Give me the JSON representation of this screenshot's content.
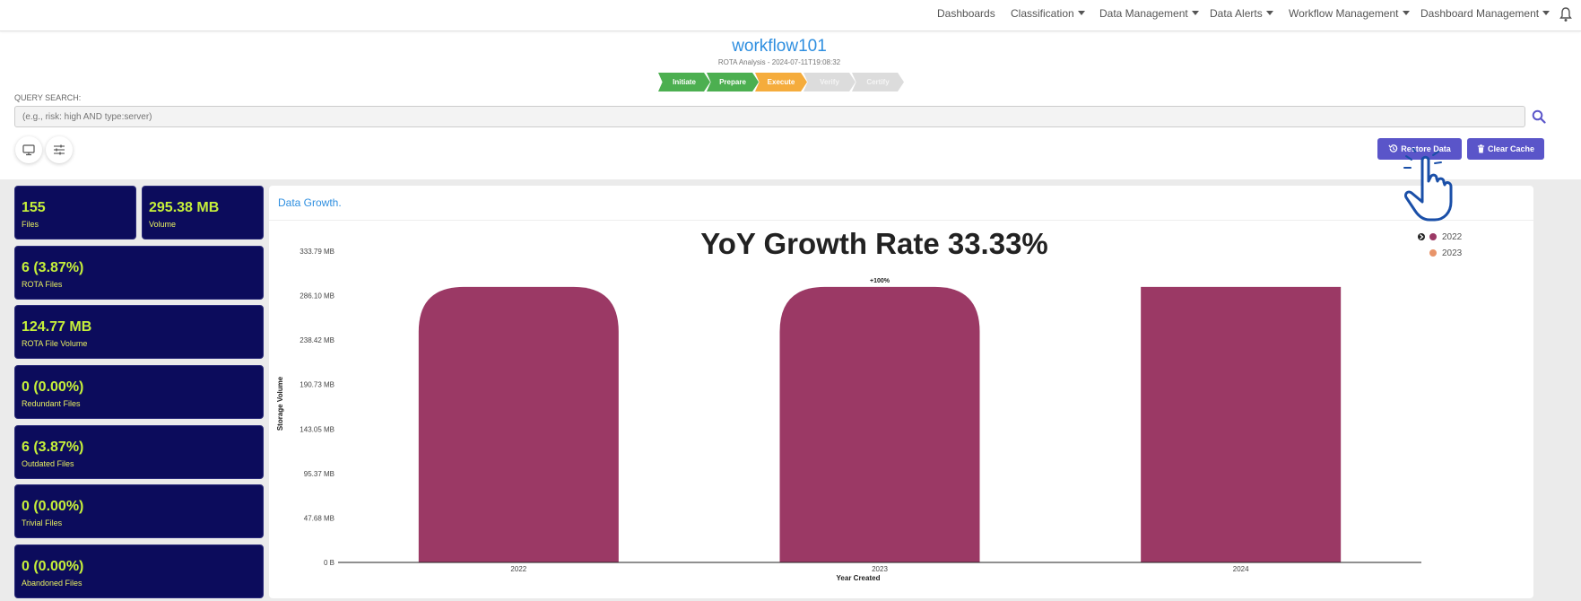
{
  "nav": {
    "items": [
      {
        "label": "Dashboards",
        "dropdown": false
      },
      {
        "label": "Classification",
        "dropdown": true
      },
      {
        "label": "Data Management",
        "dropdown": true
      },
      {
        "label": "Data Alerts",
        "dropdown": true
      },
      {
        "label": "Workflow Management",
        "dropdown": true
      },
      {
        "label": "Dashboard Management",
        "dropdown": true
      }
    ],
    "bell_icon": "bell-icon"
  },
  "header": {
    "title": "workflow101",
    "subtitle": "ROTA Analysis - 2024-07-11T19:08:32",
    "steps": [
      {
        "label": "Initiate",
        "state": "done"
      },
      {
        "label": "Prepare",
        "state": "done"
      },
      {
        "label": "Execute",
        "state": "active"
      },
      {
        "label": "Verify",
        "state": "pending"
      },
      {
        "label": "Certify",
        "state": "pending"
      }
    ]
  },
  "query": {
    "label": "QUERY SEARCH:",
    "placeholder": "(e.g., risk: high AND type:server)",
    "value": ""
  },
  "actions": {
    "restore_label": "Restore Data",
    "clear_label": "Clear Cache"
  },
  "colors": {
    "accent": "#5a55c9",
    "card_bg": "#0c0c5c",
    "card_value": "#c6f03a",
    "bar": "#9b3965",
    "series_2023": "#e8946a",
    "title_blue": "#2f8fe0"
  },
  "stats": [
    {
      "value": "155",
      "label": "Files"
    },
    {
      "value": "295.38 MB",
      "label": "Volume"
    },
    {
      "value": "6 (3.87%)",
      "label": "ROTA Files"
    },
    {
      "value": "124.77 MB",
      "label": "ROTA File Volume"
    },
    {
      "value": "0 (0.00%)",
      "label": "Redundant Files"
    },
    {
      "value": "6 (3.87%)",
      "label": "Outdated Files"
    },
    {
      "value": "0 (0.00%)",
      "label": "Trivial Files"
    },
    {
      "value": "0 (0.00%)",
      "label": "Abandoned Files"
    }
  ],
  "panel": {
    "title": "Data Growth."
  },
  "chart_data": {
    "type": "bar",
    "title": "YoY Growth Rate 33.33%",
    "xlabel": "Year Created",
    "ylabel": "Storage Volume",
    "categories": [
      "2022",
      "2023",
      "2024"
    ],
    "values_mb": [
      295.38,
      295.38,
      295.38
    ],
    "y_ticks": [
      "0 B",
      "47.68 MB",
      "95.37 MB",
      "143.05 MB",
      "190.73 MB",
      "238.42 MB",
      "286.10 MB",
      "333.79 MB"
    ],
    "y_tick_values_mb": [
      0,
      47.68,
      95.37,
      143.05,
      190.73,
      238.42,
      286.1,
      333.79
    ],
    "ylim_mb": [
      0,
      333.79
    ],
    "bar_annotation": {
      "category": "2023",
      "text": "+100%"
    },
    "legend": {
      "placement": "top-right",
      "entries": [
        {
          "name": "2022",
          "color": "#9b3965"
        },
        {
          "name": "2023",
          "color": "#e8946a"
        }
      ]
    },
    "grid": false
  }
}
